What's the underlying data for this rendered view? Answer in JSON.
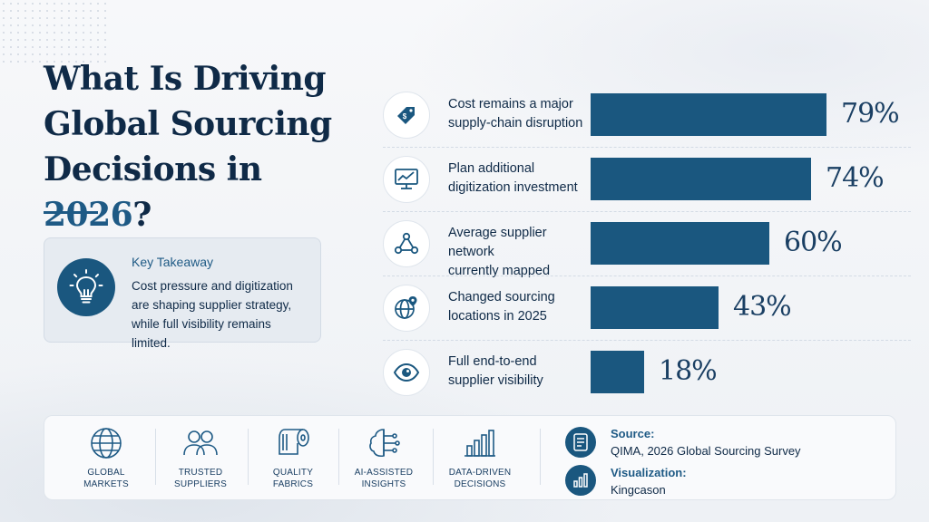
{
  "title": {
    "line1": "What Is Driving",
    "line2": "Global Sourcing",
    "line3_prefix": "Decisions in ",
    "line3_accent": "2026",
    "line3_suffix": "?"
  },
  "takeaway": {
    "heading": "Key Takeaway",
    "line1": "Cost pressure and digitization",
    "line2": "are shaping supplier strategy,",
    "line3": "while full visibility remains limited.",
    "icon": "lightbulb-icon"
  },
  "chart_data": {
    "type": "bar",
    "orientation": "horizontal",
    "categories": [
      "Cost remains a major supply-chain disruption",
      "Plan additional digitization investment",
      "Average supplier network currently mapped",
      "Changed sourcing locations in 2025",
      "Full end-to-end supplier visibility"
    ],
    "category_lines": [
      [
        "Cost remains a major",
        "supply-chain disruption"
      ],
      [
        "Plan additional",
        "digitization investment"
      ],
      [
        "Average supplier network",
        "currently mapped"
      ],
      [
        "Changed sourcing",
        "locations in 2025"
      ],
      [
        "Full end-to-end",
        "supplier visibility"
      ]
    ],
    "values": [
      79,
      74,
      60,
      43,
      18
    ],
    "value_labels": [
      "79%",
      "74%",
      "60%",
      "43%",
      "18%"
    ],
    "icons": [
      "price-tag-icon",
      "monitor-chart-icon",
      "network-icon",
      "globe-pin-icon",
      "eye-icon"
    ],
    "xlim": [
      0,
      100
    ],
    "bar_color": "#1a577f",
    "grid": false,
    "legend": "none"
  },
  "features": [
    {
      "line1": "GLOBAL",
      "line2": "MARKETS",
      "icon": "globe-icon"
    },
    {
      "line1": "TRUSTED",
      "line2": "SUPPLIERS",
      "icon": "people-icon"
    },
    {
      "line1": "QUALITY",
      "line2": "FABRICS",
      "icon": "fabric-roll-icon"
    },
    {
      "line1": "AI-ASSISTED",
      "line2": "INSIGHTS",
      "icon": "brain-circuit-icon"
    },
    {
      "line1": "DATA-DRIVEN",
      "line2": "DECISIONS",
      "icon": "bar-chart-icon"
    }
  ],
  "credits": {
    "source_heading": "Source:",
    "source_text": "QIMA, 2026 Global Sourcing Survey",
    "viz_heading": "Visualization:",
    "viz_text": "Kingcason"
  },
  "colors": {
    "navy": "#0f2a47",
    "accent": "#1e5a85",
    "bar": "#1a577f"
  }
}
